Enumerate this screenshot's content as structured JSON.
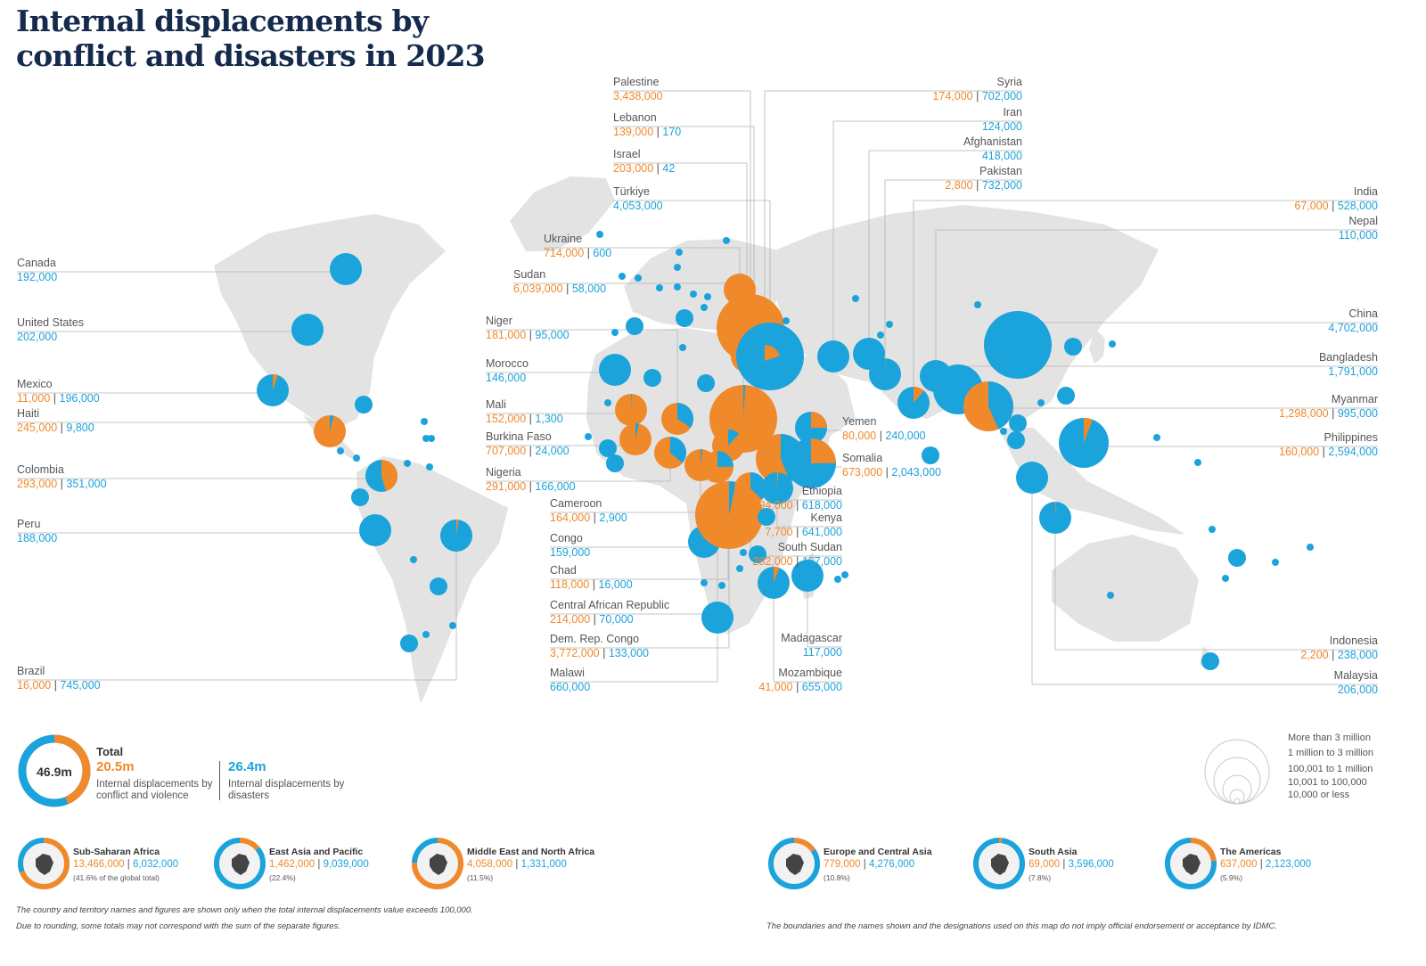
{
  "title_line1": "Internal displacements by",
  "title_line2": "conflict and disasters in 2023",
  "colors": {
    "conflict": "#f0892a",
    "disaster": "#1ba3dc",
    "land": "#e3e3e3",
    "leader": "#b4b4b4"
  },
  "labels": [
    {
      "name": "Canada",
      "v1": "",
      "v2": "192,000"
    },
    {
      "name": "United States",
      "v1": "",
      "v2": "202,000"
    },
    {
      "name": "Mexico",
      "v1": "11,000",
      "v2": "196,000"
    },
    {
      "name": "Haiti",
      "v1": "245,000",
      "v2": "9,800"
    },
    {
      "name": "Colombia",
      "v1": "293,000",
      "v2": "351,000"
    },
    {
      "name": "Peru",
      "v1": "",
      "v2": "188,000"
    },
    {
      "name": "Brazil",
      "v1": "16,000",
      "v2": "745,000"
    },
    {
      "name": "Palestine",
      "v1": "3,438,000",
      "v2": ""
    },
    {
      "name": "Lebanon",
      "v1": "139,000",
      "v2": "170"
    },
    {
      "name": "Israel",
      "v1": "203,000",
      "v2": "42"
    },
    {
      "name": "Türkiye",
      "v1": "",
      "v2": "4,053,000"
    },
    {
      "name": "Ukraine",
      "v1": "714,000",
      "v2": "600"
    },
    {
      "name": "Sudan",
      "v1": "6,039,000",
      "v2": "58,000"
    },
    {
      "name": "Niger",
      "v1": "181,000",
      "v2": "95,000"
    },
    {
      "name": "Morocco",
      "v1": "",
      "v2": "146,000"
    },
    {
      "name": "Mali",
      "v1": "152,000",
      "v2": "1,300"
    },
    {
      "name": "Burkina Faso",
      "v1": "707,000",
      "v2": "24,000"
    },
    {
      "name": "Nigeria",
      "v1": "291,000",
      "v2": "166,000"
    },
    {
      "name": "Cameroon",
      "v1": "164,000",
      "v2": "2,900"
    },
    {
      "name": "Congo",
      "v1": "",
      "v2": "159,000"
    },
    {
      "name": "Chad",
      "v1": "118,000",
      "v2": "16,000"
    },
    {
      "name": "Central African Republic",
      "v1": "214,000",
      "v2": "70,000"
    },
    {
      "name": "Dem. Rep. Congo",
      "v1": "3,772,000",
      "v2": "133,000"
    },
    {
      "name": "Malawi",
      "v1": "",
      "v2": "660,000"
    },
    {
      "name": "Yemen",
      "v1": "80,000",
      "v2": "240,000"
    },
    {
      "name": "Somalia",
      "v1": "673,000",
      "v2": "2,043,000"
    },
    {
      "name": "Ethiopia",
      "v1": "794,000",
      "v2": "618,000"
    },
    {
      "name": "Kenya",
      "v1": "7,700",
      "v2": "641,000"
    },
    {
      "name": "South Sudan",
      "v1": "282,000",
      "v2": "167,000"
    },
    {
      "name": "Madagascar",
      "v1": "",
      "v2": "117,000"
    },
    {
      "name": "Mozambique",
      "v1": "41,000",
      "v2": "655,000"
    },
    {
      "name": "Syria",
      "v1": "174,000",
      "v2": "702,000"
    },
    {
      "name": "Iran",
      "v1": "",
      "v2": "124,000"
    },
    {
      "name": "Afghanistan",
      "v1": "",
      "v2": "418,000"
    },
    {
      "name": "Pakistan",
      "v1": "2,800",
      "v2": "732,000"
    },
    {
      "name": "India",
      "v1": "67,000",
      "v2": "528,000"
    },
    {
      "name": "Nepal",
      "v1": "",
      "v2": "110,000"
    },
    {
      "name": "China",
      "v1": "",
      "v2": "4,702,000"
    },
    {
      "name": "Bangladesh",
      "v1": "",
      "v2": "1,791,000"
    },
    {
      "name": "Myanmar",
      "v1": "1,298,000",
      "v2": "995,000"
    },
    {
      "name": "Philippines",
      "v1": "160,000",
      "v2": "2,594,000"
    },
    {
      "name": "Indonesia",
      "v1": "2,200",
      "v2": "238,000"
    },
    {
      "name": "Malaysia",
      "v1": "",
      "v2": "206,000"
    }
  ],
  "total": {
    "center": "46.9m",
    "heading": "Total",
    "conflict_value": "20.5m",
    "conflict_desc": "Internal displacements by conflict and violence",
    "disaster_value": "26.4m",
    "disaster_desc": "Internal displacements by disasters",
    "conflict_share": 0.437
  },
  "size_legend": [
    "More than 3 million",
    "1 million to 3 million",
    "100,001 to 1 million",
    "10,001 to 100,000",
    "10,000 or less"
  ],
  "regions": [
    {
      "name": "Sub-Saharan Africa",
      "conflict": "13,466,000",
      "disaster": "6,032,000",
      "share": "(41.6% of the global total)",
      "conflict_frac": 0.691
    },
    {
      "name": "East Asia and Pacific",
      "conflict": "1,462,000",
      "disaster": "9,039,000",
      "share": "(22.4%)",
      "conflict_frac": 0.139
    },
    {
      "name": "Middle East and North Africa",
      "conflict": "4,058,000",
      "disaster": "1,331,000",
      "share": "(11.5%)",
      "conflict_frac": 0.753
    },
    {
      "name": "Europe and Central Asia",
      "conflict": "779,000",
      "disaster": "4,276,000",
      "share": "(10.8%)",
      "conflict_frac": 0.154
    },
    {
      "name": "South Asia",
      "conflict": "69,000",
      "disaster": "3,596,000",
      "share": "(7.8%)",
      "conflict_frac": 0.019
    },
    {
      "name": "The Americas",
      "conflict": "637,000",
      "disaster": "2,123,000",
      "share": "(5.9%)",
      "conflict_frac": 0.231
    }
  ],
  "footnotes": [
    "The country and territory names and figures are shown only when the total internal displacements value exceeds 100,000.",
    "Due to rounding, some totals may not correspond with the sum of the separate figures.",
    "The boundaries and the names shown and the designations used on this map do not imply official endorsement or acceptance by IDMC."
  ]
}
